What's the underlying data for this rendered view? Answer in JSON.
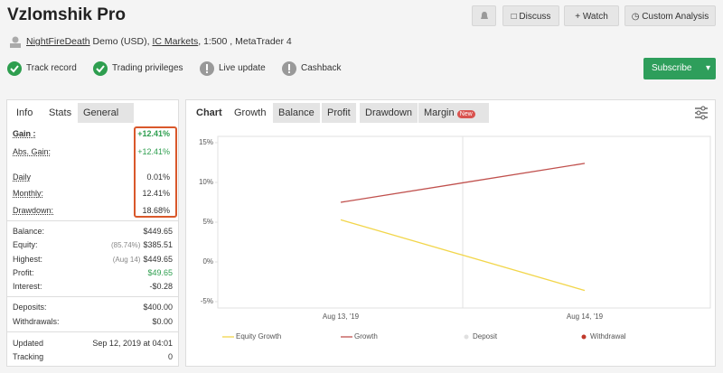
{
  "header": {
    "title": "Vzlomshik Pro",
    "user": "NightFireDeath",
    "account": "Demo (USD),",
    "broker": "IC Markets",
    "details": ", 1:500 , MetaTrader 4",
    "buttons": [
      "Discuss",
      "Watch",
      "Custom Analysis"
    ],
    "subscribe": "Subscribe"
  },
  "badges": [
    "Track record",
    "Trading privileges",
    "Live update",
    "Cashback"
  ],
  "left_tabs": [
    "Info",
    "Stats",
    "General"
  ],
  "stats": {
    "groups": [
      [
        {
          "label": "Gain :",
          "value": "+12.41%",
          "color": "#2e9e4f"
        },
        {
          "label": "Abs. Gain:",
          "value": "+12.41%",
          "color": "#2e9e4f"
        },
        {
          "label": "Daily",
          "value": "0.01%"
        },
        {
          "label": "Monthly:",
          "value": "12.41%"
        },
        {
          "label": "Drawdown:",
          "value": "18.68%"
        }
      ],
      [
        {
          "label": "Balance:",
          "value": "$449.65"
        },
        {
          "label": "Equity:",
          "note": "(85.74%)",
          "value": "$385.51"
        },
        {
          "label": "Highest:",
          "note": "(Aug 14)",
          "value": "$449.65"
        },
        {
          "label": "Profit:",
          "value": "$49.65",
          "color": "#2e9e4f"
        },
        {
          "label": "Interest:",
          "value": "-$0.28"
        }
      ],
      [
        {
          "label": "Deposits:",
          "value": "$400.00"
        },
        {
          "label": "Withdrawals:",
          "value": "$0.00"
        }
      ],
      [
        {
          "label": "Updated",
          "value": "Sep 12, 2019 at 04:01"
        },
        {
          "label": "Tracking",
          "value": "0"
        }
      ]
    ]
  },
  "chart_tabs": [
    "Chart",
    "Growth",
    "Balance",
    "Profit",
    "Drawdown",
    "Margin"
  ],
  "new_badge": "New",
  "chart_data": {
    "type": "line",
    "categories": [
      "Aug 13, '19",
      "Aug 14, '19"
    ],
    "series": [
      {
        "name": "Equity Growth",
        "color": "#f2d64b",
        "values": [
          5.3,
          -3.6
        ]
      },
      {
        "name": "Growth",
        "color": "#c0504d",
        "values": [
          7.5,
          12.4
        ]
      },
      {
        "name": "Deposit",
        "color": "#e0e0e0",
        "values": [
          null,
          null
        ]
      },
      {
        "name": "Withdrawal",
        "color": "#c0392b",
        "values": [
          null,
          null
        ]
      }
    ],
    "ylim": [
      -5,
      15
    ],
    "yticks": [
      {
        "value": -5,
        "label": "-5%"
      },
      {
        "value": 0,
        "label": "0%"
      },
      {
        "value": 5,
        "label": "5%"
      },
      {
        "value": 10,
        "label": "10%"
      },
      {
        "value": 15,
        "label": "15%"
      }
    ]
  }
}
